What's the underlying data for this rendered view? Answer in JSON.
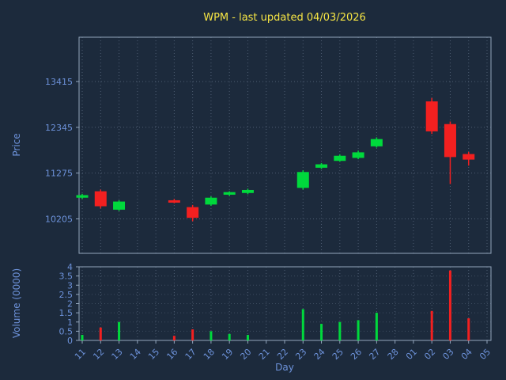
{
  "title": "WPM - last updated 04/03/2026",
  "axes": {
    "price_label": "Price",
    "volume_label": "Volume (0000)",
    "x_label": "Day"
  },
  "colors": {
    "background": "#1c2a3c",
    "title": "#f7e644",
    "tick_label": "#6d92da",
    "axis_label": "#6d92da",
    "spine": "#93a6bd",
    "grid": "#4e5d72",
    "up": "#00d93c",
    "down": "#f32020"
  },
  "chart_data": {
    "type": "candlestick",
    "subtype": "ohlc-with-volume",
    "title": "WPM - last updated 04/03/2026",
    "xlabel": "Day",
    "ylabel": "Price",
    "ylabel2": "Volume (0000)",
    "grid": true,
    "categories": [
      "11",
      "12",
      "13",
      "14",
      "15",
      "16",
      "17",
      "18",
      "19",
      "20",
      "21",
      "22",
      "23",
      "24",
      "25",
      "26",
      "27",
      "28",
      "01",
      "02",
      "03",
      "04",
      "05"
    ],
    "price_ticks": [
      10205,
      11275,
      12345,
      13415
    ],
    "price_range": [
      9400,
      14450
    ],
    "volume_ticks": [
      0,
      0.5,
      1,
      1.5,
      2,
      2.5,
      3,
      3.5,
      4
    ],
    "volume_range": [
      0,
      4
    ],
    "candles": [
      {
        "day": "11",
        "open": 10700,
        "high": 10790,
        "low": 10670,
        "close": 10760,
        "volume": 0.3
      },
      {
        "day": "12",
        "open": 10850,
        "high": 10890,
        "low": 10450,
        "close": 10500,
        "volume": 0.7
      },
      {
        "day": "13",
        "open": 10420,
        "high": 10640,
        "low": 10390,
        "close": 10610,
        "volume": 1.0
      },
      {
        "day": "16",
        "open": 10640,
        "high": 10670,
        "low": 10570,
        "close": 10590,
        "volume": 0.25
      },
      {
        "day": "17",
        "open": 10480,
        "high": 10530,
        "low": 10150,
        "close": 10230,
        "volume": 0.6
      },
      {
        "day": "18",
        "open": 10540,
        "high": 10730,
        "low": 10510,
        "close": 10700,
        "volume": 0.5
      },
      {
        "day": "19",
        "open": 10770,
        "high": 10850,
        "low": 10740,
        "close": 10830,
        "volume": 0.35
      },
      {
        "day": "20",
        "open": 10810,
        "high": 10910,
        "low": 10780,
        "close": 10880,
        "volume": 0.3
      },
      {
        "day": "23",
        "open": 10930,
        "high": 11340,
        "low": 10890,
        "close": 11300,
        "volume": 1.7
      },
      {
        "day": "24",
        "open": 11400,
        "high": 11510,
        "low": 11370,
        "close": 11480,
        "volume": 0.9
      },
      {
        "day": "25",
        "open": 11560,
        "high": 11710,
        "low": 11540,
        "close": 11680,
        "volume": 1.0
      },
      {
        "day": "26",
        "open": 11630,
        "high": 11800,
        "low": 11600,
        "close": 11760,
        "volume": 1.1
      },
      {
        "day": "27",
        "open": 11900,
        "high": 12110,
        "low": 11870,
        "close": 12070,
        "volume": 1.5
      },
      {
        "day": "02",
        "open": 12950,
        "high": 13030,
        "low": 12190,
        "close": 12250,
        "volume": 1.6
      },
      {
        "day": "03",
        "open": 12420,
        "high": 12480,
        "low": 11020,
        "close": 11650,
        "volume": 3.8
      },
      {
        "day": "04",
        "open": 11720,
        "high": 11770,
        "low": 11450,
        "close": 11590,
        "volume": 1.2
      }
    ]
  }
}
